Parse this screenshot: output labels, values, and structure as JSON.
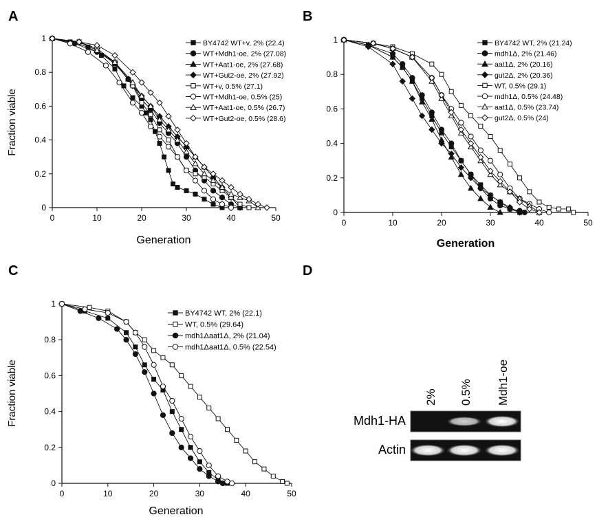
{
  "panels": {
    "A": {
      "letter": "A"
    },
    "B": {
      "letter": "B"
    },
    "C": {
      "letter": "C"
    },
    "D": {
      "letter": "D",
      "lane_labels": [
        "2%",
        "0.5%",
        "Mdh1-oe"
      ],
      "row_labels": [
        "Mdh1-HA",
        "Actin"
      ],
      "mdh1_ha_intensity": [
        0.0,
        0.55,
        0.9
      ],
      "actin_intensity": [
        0.95,
        0.95,
        0.95
      ]
    }
  },
  "chart_data": [
    {
      "id": "A",
      "type": "line",
      "xlabel": "Generation",
      "ylabel": "Fraction viable",
      "xlim": [
        0,
        50
      ],
      "ylim": [
        0,
        1
      ],
      "xticks": [
        "0",
        "10",
        "20",
        "30",
        "40",
        "50"
      ],
      "yticks": [
        "0",
        "0.2",
        "0.4",
        "0.6",
        "0.8",
        "1"
      ],
      "grid": false,
      "legend_position": "top-right",
      "series": [
        {
          "name": "BY4742 WT+v, 2% (22.4)",
          "marker": "square-filled",
          "x": [
            0,
            4,
            8,
            11,
            14,
            16,
            18,
            20,
            21,
            22,
            23,
            24,
            25,
            26,
            27,
            28,
            30,
            32,
            34,
            36,
            38
          ],
          "y": [
            1,
            0.98,
            0.95,
            0.9,
            0.82,
            0.72,
            0.65,
            0.6,
            0.56,
            0.52,
            0.45,
            0.38,
            0.3,
            0.22,
            0.14,
            0.12,
            0.1,
            0.08,
            0.05,
            0.02,
            0
          ]
        },
        {
          "name": "WT+Mdh1-oe, 2% (27.08)",
          "marker": "circle-filled",
          "x": [
            0,
            5,
            10,
            14,
            17,
            20,
            22,
            24,
            26,
            28,
            30,
            32,
            34,
            36,
            38,
            40,
            42
          ],
          "y": [
            1,
            0.97,
            0.92,
            0.86,
            0.76,
            0.64,
            0.58,
            0.5,
            0.44,
            0.38,
            0.3,
            0.22,
            0.16,
            0.1,
            0.06,
            0.02,
            0
          ]
        },
        {
          "name": "WT+Aat1-oe, 2% (27.68)",
          "marker": "triangle-filled",
          "x": [
            0,
            6,
            10,
            14,
            17,
            20,
            22,
            24,
            26,
            28,
            30,
            32,
            34,
            36,
            38,
            40,
            42
          ],
          "y": [
            1,
            0.98,
            0.93,
            0.85,
            0.76,
            0.66,
            0.6,
            0.54,
            0.48,
            0.42,
            0.36,
            0.3,
            0.24,
            0.18,
            0.12,
            0.06,
            0
          ]
        },
        {
          "name": "WT+Gut2-oe, 2% (27.92)",
          "marker": "diamond-filled",
          "x": [
            0,
            6,
            10,
            14,
            18,
            20,
            22,
            24,
            26,
            28,
            30,
            32,
            34,
            36,
            38,
            40,
            42
          ],
          "y": [
            1,
            0.98,
            0.94,
            0.86,
            0.72,
            0.66,
            0.6,
            0.54,
            0.48,
            0.42,
            0.36,
            0.3,
            0.24,
            0.18,
            0.12,
            0.06,
            0
          ]
        },
        {
          "name": "WT+v, 0.5% (27.1)",
          "marker": "square-open",
          "x": [
            0,
            6,
            10,
            14,
            18,
            20,
            22,
            24,
            26,
            28,
            30,
            32,
            34,
            36,
            38,
            40,
            42,
            44
          ],
          "y": [
            1,
            0.98,
            0.94,
            0.86,
            0.72,
            0.62,
            0.55,
            0.46,
            0.4,
            0.3,
            0.22,
            0.2,
            0.18,
            0.14,
            0.1,
            0.06,
            0.02,
            0
          ]
        },
        {
          "name": "WT+Mdh1-oe, 0.5% (25)",
          "marker": "circle-open",
          "x": [
            0,
            4,
            8,
            12,
            15,
            18,
            20,
            22,
            24,
            26,
            28,
            30,
            32,
            34,
            36,
            38,
            40
          ],
          "y": [
            1,
            0.97,
            0.92,
            0.84,
            0.74,
            0.62,
            0.56,
            0.48,
            0.42,
            0.36,
            0.3,
            0.22,
            0.16,
            0.1,
            0.05,
            0.02,
            0
          ]
        },
        {
          "name": "WT+Aat1-oe, 0.5% (26.7)",
          "marker": "triangle-open",
          "x": [
            0,
            6,
            10,
            14,
            18,
            20,
            22,
            24,
            26,
            28,
            30,
            32,
            34,
            36,
            38,
            40,
            42,
            44,
            46
          ],
          "y": [
            1,
            0.98,
            0.93,
            0.86,
            0.74,
            0.66,
            0.6,
            0.52,
            0.46,
            0.4,
            0.33,
            0.26,
            0.2,
            0.16,
            0.12,
            0.08,
            0.06,
            0.04,
            0
          ]
        },
        {
          "name": "WT+Gut2-oe, 0.5% (28.6)",
          "marker": "diamond-open",
          "x": [
            0,
            6,
            10,
            14,
            18,
            20,
            22,
            24,
            26,
            28,
            30,
            32,
            34,
            36,
            38,
            40,
            42,
            44,
            46,
            48
          ],
          "y": [
            1,
            0.98,
            0.96,
            0.9,
            0.8,
            0.74,
            0.68,
            0.62,
            0.54,
            0.46,
            0.38,
            0.3,
            0.24,
            0.2,
            0.16,
            0.12,
            0.08,
            0.05,
            0.02,
            0
          ]
        }
      ]
    },
    {
      "id": "B",
      "type": "line",
      "xlabel": "Generation",
      "ylabel": "",
      "xlim": [
        0,
        50
      ],
      "ylim": [
        0,
        1
      ],
      "xticks": [
        "0",
        "10",
        "20",
        "30",
        "40",
        "50"
      ],
      "yticks": [
        "0",
        "0.2",
        "0.4",
        "0.6",
        "0.8",
        "1"
      ],
      "grid": false,
      "legend_position": "top-right",
      "series": [
        {
          "name": "BY4742 WT, 2% (21.24)",
          "marker": "square-filled",
          "x": [
            0,
            5,
            10,
            12,
            14,
            16,
            18,
            20,
            22,
            24,
            26,
            28,
            30,
            32,
            34,
            36
          ],
          "y": [
            1,
            0.97,
            0.9,
            0.84,
            0.76,
            0.66,
            0.56,
            0.46,
            0.38,
            0.3,
            0.22,
            0.16,
            0.1,
            0.06,
            0.02,
            0
          ]
        },
        {
          "name": "mdh1Δ, 2% (21.46)",
          "marker": "circle-filled",
          "x": [
            0,
            5,
            10,
            12,
            14,
            16,
            18,
            20,
            22,
            24,
            26,
            28,
            30,
            32,
            34,
            36,
            37
          ],
          "y": [
            1,
            0.97,
            0.92,
            0.86,
            0.78,
            0.68,
            0.58,
            0.48,
            0.4,
            0.3,
            0.22,
            0.14,
            0.08,
            0.04,
            0.02,
            0.01,
            0
          ]
        },
        {
          "name": "aat1Δ, 2% (20.16)",
          "marker": "triangle-filled",
          "x": [
            0,
            5,
            10,
            12,
            14,
            16,
            18,
            20,
            22,
            24,
            26,
            28,
            30,
            32
          ],
          "y": [
            1,
            0.97,
            0.9,
            0.84,
            0.76,
            0.64,
            0.54,
            0.42,
            0.32,
            0.22,
            0.14,
            0.08,
            0.03,
            0
          ]
        },
        {
          "name": "gut2Δ, 2% (20.36)",
          "marker": "diamond-filled",
          "x": [
            0,
            5,
            10,
            12,
            14,
            16,
            18,
            20,
            22,
            24,
            26,
            28,
            30,
            32,
            34,
            36
          ],
          "y": [
            1,
            0.96,
            0.86,
            0.76,
            0.66,
            0.56,
            0.48,
            0.4,
            0.34,
            0.26,
            0.2,
            0.14,
            0.1,
            0.06,
            0.03,
            0
          ]
        },
        {
          "name": "WT, 0.5% (29.1)",
          "marker": "square-open",
          "x": [
            0,
            6,
            10,
            14,
            18,
            20,
            22,
            24,
            26,
            28,
            30,
            32,
            34,
            36,
            38,
            40,
            42,
            44,
            46,
            47
          ],
          "y": [
            1,
            0.98,
            0.96,
            0.92,
            0.86,
            0.8,
            0.7,
            0.62,
            0.56,
            0.5,
            0.44,
            0.36,
            0.28,
            0.2,
            0.12,
            0.06,
            0.03,
            0.02,
            0.02,
            0
          ]
        },
        {
          "name": "mdh1Δ, 0.5% (24.48)",
          "marker": "circle-open",
          "x": [
            0,
            6,
            10,
            14,
            18,
            20,
            22,
            24,
            26,
            28,
            30,
            32,
            34,
            36,
            38,
            40,
            42
          ],
          "y": [
            1,
            0.98,
            0.95,
            0.9,
            0.78,
            0.68,
            0.6,
            0.52,
            0.44,
            0.36,
            0.3,
            0.22,
            0.14,
            0.08,
            0.05,
            0.02,
            0
          ]
        },
        {
          "name": "aat1Δ, 0.5% (23.74)",
          "marker": "triangle-open",
          "x": [
            0,
            6,
            10,
            14,
            18,
            20,
            22,
            24,
            26,
            28,
            30,
            32,
            34,
            36,
            38,
            40
          ],
          "y": [
            1,
            0.98,
            0.95,
            0.9,
            0.76,
            0.66,
            0.56,
            0.46,
            0.38,
            0.3,
            0.22,
            0.16,
            0.12,
            0.08,
            0.04,
            0
          ]
        },
        {
          "name": "gut2Δ, 0.5% (24)",
          "marker": "diamond-open",
          "x": [
            0,
            6,
            10,
            14,
            18,
            20,
            22,
            24,
            26,
            28,
            30,
            32,
            34,
            36,
            38,
            40
          ],
          "y": [
            1,
            0.98,
            0.95,
            0.9,
            0.78,
            0.68,
            0.58,
            0.48,
            0.4,
            0.32,
            0.24,
            0.18,
            0.12,
            0.06,
            0.02,
            0
          ]
        }
      ]
    },
    {
      "id": "C",
      "type": "line",
      "xlabel": "Generation",
      "ylabel": "Fraction viable",
      "xlim": [
        0,
        50
      ],
      "ylim": [
        0,
        1
      ],
      "xticks": [
        "0",
        "10",
        "20",
        "30",
        "40",
        "50"
      ],
      "yticks": [
        "0",
        "0.2",
        "0.4",
        "0.6",
        "0.8",
        "1"
      ],
      "grid": false,
      "legend_position": "top-right",
      "series": [
        {
          "name": "BY4742 WT, 2% (22.1)",
          "marker": "square-filled",
          "x": [
            0,
            5,
            10,
            14,
            16,
            18,
            20,
            22,
            24,
            26,
            28,
            30,
            32,
            34,
            36
          ],
          "y": [
            1,
            0.96,
            0.92,
            0.84,
            0.76,
            0.66,
            0.58,
            0.52,
            0.4,
            0.3,
            0.2,
            0.12,
            0.06,
            0.02,
            0
          ]
        },
        {
          "name": "WT, 0.5% (29.64)",
          "marker": "square-open",
          "x": [
            0,
            6,
            10,
            14,
            16,
            18,
            20,
            22,
            24,
            26,
            28,
            30,
            32,
            34,
            36,
            38,
            40,
            42,
            44,
            46,
            48,
            49
          ],
          "y": [
            1,
            0.98,
            0.96,
            0.9,
            0.84,
            0.8,
            0.74,
            0.7,
            0.66,
            0.6,
            0.54,
            0.48,
            0.42,
            0.36,
            0.3,
            0.24,
            0.18,
            0.12,
            0.08,
            0.04,
            0.01,
            0
          ]
        },
        {
          "name": "mdh1Δaat1Δ, 2% (21.04)",
          "marker": "circle-filled",
          "x": [
            0,
            4,
            8,
            12,
            14,
            16,
            18,
            20,
            22,
            24,
            26,
            28,
            30,
            32,
            34,
            35
          ],
          "y": [
            1,
            0.96,
            0.92,
            0.86,
            0.8,
            0.72,
            0.62,
            0.5,
            0.38,
            0.28,
            0.2,
            0.14,
            0.08,
            0.04,
            0.01,
            0
          ]
        },
        {
          "name": "mdh1Δaat1Δ, 0.5% (22.54)",
          "marker": "circle-open",
          "x": [
            0,
            5,
            10,
            14,
            16,
            18,
            20,
            22,
            24,
            26,
            28,
            30,
            32,
            34,
            36,
            37
          ],
          "y": [
            1,
            0.97,
            0.95,
            0.9,
            0.84,
            0.76,
            0.66,
            0.54,
            0.46,
            0.36,
            0.26,
            0.18,
            0.1,
            0.04,
            0.01,
            0
          ]
        }
      ]
    }
  ]
}
